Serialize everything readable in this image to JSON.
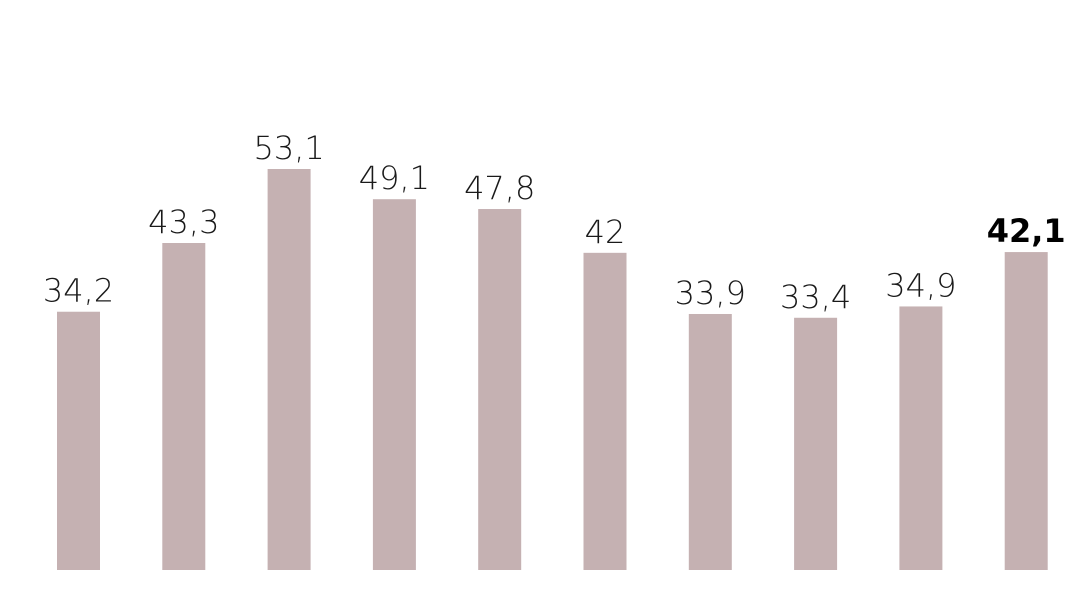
{
  "chart_data": {
    "type": "bar",
    "categories": [
      null,
      null,
      null,
      null,
      null,
      null,
      null,
      null,
      null,
      null
    ],
    "values": [
      34.2,
      43.3,
      53.1,
      49.1,
      47.8,
      42,
      33.9,
      33.4,
      34.9,
      42.1
    ],
    "value_labels": [
      "34,2",
      "43,3",
      "53,1",
      "49,1",
      "47,8",
      "42",
      "33,9",
      "33,4",
      "34,9",
      "42,1"
    ],
    "color": "#c5b1b2"
  }
}
